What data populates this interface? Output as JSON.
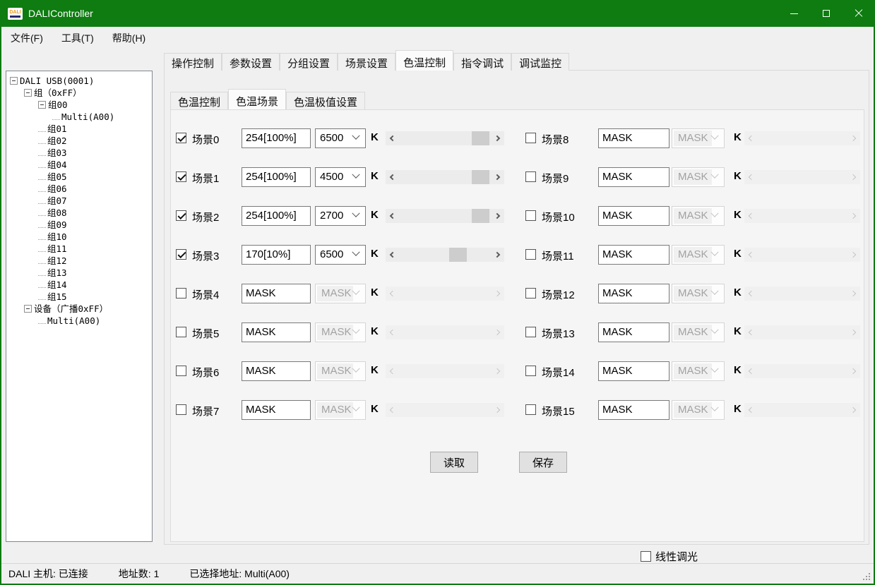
{
  "window": {
    "title": "DALIController"
  },
  "icons": {
    "app_logo": "dali-logo",
    "minimize": "horizontal-line",
    "maximize": "square-outline",
    "close": "x-cross",
    "tree_expand": "minus-box",
    "combo_chevron": "chevron-down",
    "scroll_left": "chevron-left",
    "scroll_right": "chevron-right",
    "resize_grip": "dots-triangle"
  },
  "logo_text": "DALI",
  "menu": {
    "items": [
      "文件(F)",
      "工具(T)",
      "帮助(H)"
    ]
  },
  "tree": {
    "items": [
      {
        "label": "DALI USB(0001)",
        "level": 0,
        "box": true
      },
      {
        "label": "组（0xFF）",
        "level": 1,
        "box": true
      },
      {
        "label": "组00",
        "level": 2,
        "box": true
      },
      {
        "label": "Multi(A00)",
        "level": 3,
        "box": false
      },
      {
        "label": "组01",
        "level": 2,
        "box": false
      },
      {
        "label": "组02",
        "level": 2,
        "box": false
      },
      {
        "label": "组03",
        "level": 2,
        "box": false
      },
      {
        "label": "组04",
        "level": 2,
        "box": false
      },
      {
        "label": "组05",
        "level": 2,
        "box": false
      },
      {
        "label": "组06",
        "level": 2,
        "box": false
      },
      {
        "label": "组07",
        "level": 2,
        "box": false
      },
      {
        "label": "组08",
        "level": 2,
        "box": false
      },
      {
        "label": "组09",
        "level": 2,
        "box": false
      },
      {
        "label": "组10",
        "level": 2,
        "box": false
      },
      {
        "label": "组11",
        "level": 2,
        "box": false
      },
      {
        "label": "组12",
        "level": 2,
        "box": false
      },
      {
        "label": "组13",
        "level": 2,
        "box": false
      },
      {
        "label": "组14",
        "level": 2,
        "box": false
      },
      {
        "label": "组15",
        "level": 2,
        "box": false
      },
      {
        "label": "设备（广播0xFF）",
        "level": 1,
        "box": true
      },
      {
        "label": "Multi(A00)",
        "level": 2,
        "box": false
      }
    ]
  },
  "tabs": {
    "main": [
      "操作控制",
      "参数设置",
      "分组设置",
      "场景设置",
      "色温控制",
      "指令调试",
      "调试监控"
    ],
    "active_main": "色温控制",
    "sub": [
      "色温控制",
      "色温场景",
      "色温极值设置"
    ],
    "active_sub": "色温场景"
  },
  "k_label": "K",
  "scenes": [
    {
      "label": "场景0",
      "checked": true,
      "enabled": true,
      "level": "254[100%]",
      "temp": "6500",
      "thumb": 96
    },
    {
      "label": "场景1",
      "checked": true,
      "enabled": true,
      "level": "254[100%]",
      "temp": "4500",
      "thumb": 96
    },
    {
      "label": "场景2",
      "checked": true,
      "enabled": true,
      "level": "254[100%]",
      "temp": "2700",
      "thumb": 96
    },
    {
      "label": "场景3",
      "checked": true,
      "enabled": true,
      "level": "170[10%]",
      "temp": "6500",
      "thumb": 67
    },
    {
      "label": "场景4",
      "checked": false,
      "enabled": false,
      "level": "MASK",
      "temp": "MASK",
      "thumb": null
    },
    {
      "label": "场景5",
      "checked": false,
      "enabled": false,
      "level": "MASK",
      "temp": "MASK",
      "thumb": null
    },
    {
      "label": "场景6",
      "checked": false,
      "enabled": false,
      "level": "MASK",
      "temp": "MASK",
      "thumb": null
    },
    {
      "label": "场景7",
      "checked": false,
      "enabled": false,
      "level": "MASK",
      "temp": "MASK",
      "thumb": null
    },
    {
      "label": "场景8",
      "checked": false,
      "enabled": false,
      "level": "MASK",
      "temp": "MASK",
      "thumb": null
    },
    {
      "label": "场景9",
      "checked": false,
      "enabled": false,
      "level": "MASK",
      "temp": "MASK",
      "thumb": null
    },
    {
      "label": "场景10",
      "checked": false,
      "enabled": false,
      "level": "MASK",
      "temp": "MASK",
      "thumb": null
    },
    {
      "label": "场景11",
      "checked": false,
      "enabled": false,
      "level": "MASK",
      "temp": "MASK",
      "thumb": null
    },
    {
      "label": "场景12",
      "checked": false,
      "enabled": false,
      "level": "MASK",
      "temp": "MASK",
      "thumb": null
    },
    {
      "label": "场景13",
      "checked": false,
      "enabled": false,
      "level": "MASK",
      "temp": "MASK",
      "thumb": null
    },
    {
      "label": "场景14",
      "checked": false,
      "enabled": false,
      "level": "MASK",
      "temp": "MASK",
      "thumb": null
    },
    {
      "label": "场景15",
      "checked": false,
      "enabled": false,
      "level": "MASK",
      "temp": "MASK",
      "thumb": null
    }
  ],
  "buttons": {
    "read": "读取",
    "save": "保存"
  },
  "linear_dimming": {
    "label": "线性调光",
    "checked": false
  },
  "status": {
    "host": "DALI 主机: 已连接",
    "address_count": "地址数: 1",
    "selected_address": "已选择地址: Multi(A00)"
  },
  "colors": {
    "titlebar_green": "#0e7c10",
    "panel_bg": "#f5f5f6",
    "thumb_gray": "#cdcdcd"
  }
}
